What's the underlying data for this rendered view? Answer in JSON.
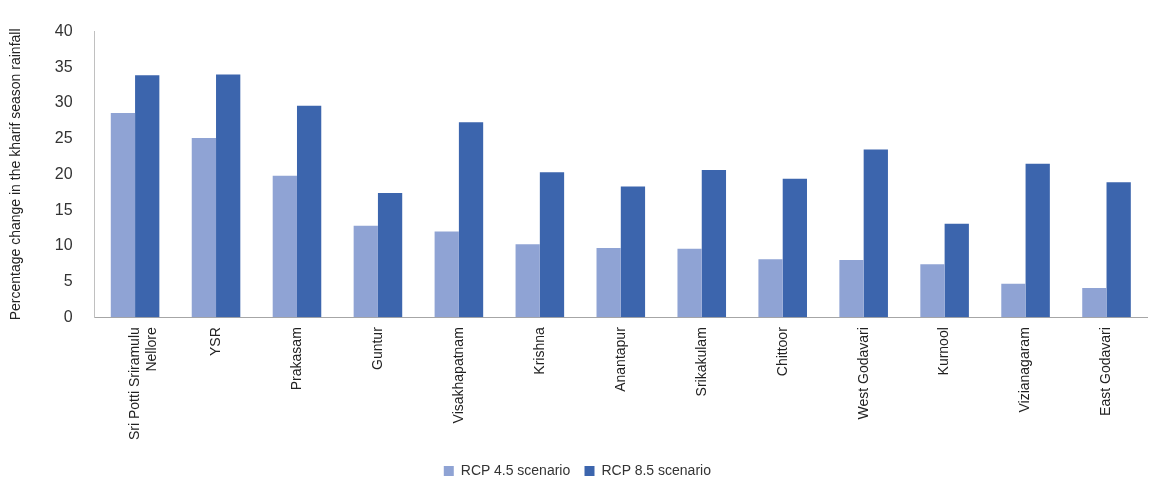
{
  "chart_data": {
    "type": "bar",
    "ylabel": "Percentage change in the kharif season rainfall",
    "categories": [
      "Sri Potti Sriramulu Nellore",
      "YSR",
      "Prakasam",
      "Guntur",
      "Visakhapatnam",
      "Krishna",
      "Anantapur",
      "Srikakulam",
      "Chittoor",
      "West Godavari",
      "Kurnool",
      "Vizianagaram",
      "East Godavari"
    ],
    "series": [
      {
        "name": "RCP 4.5 scenario",
        "color": "#8fa3d4",
        "values": [
          28.6,
          25.1,
          19.8,
          12.8,
          12.0,
          10.2,
          9.7,
          9.6,
          8.1,
          8.0,
          7.4,
          4.7,
          4.1
        ]
      },
      {
        "name": "RCP 8.5 scenario",
        "color": "#3c65ad",
        "values": [
          33.9,
          34.0,
          29.6,
          17.4,
          27.3,
          20.3,
          18.3,
          20.6,
          19.4,
          23.5,
          13.1,
          21.5,
          18.9
        ]
      }
    ],
    "ylim": [
      0,
      40
    ],
    "yticks": [
      0,
      5,
      10,
      15,
      20,
      25,
      30,
      35,
      40
    ],
    "legend": "bottom"
  }
}
